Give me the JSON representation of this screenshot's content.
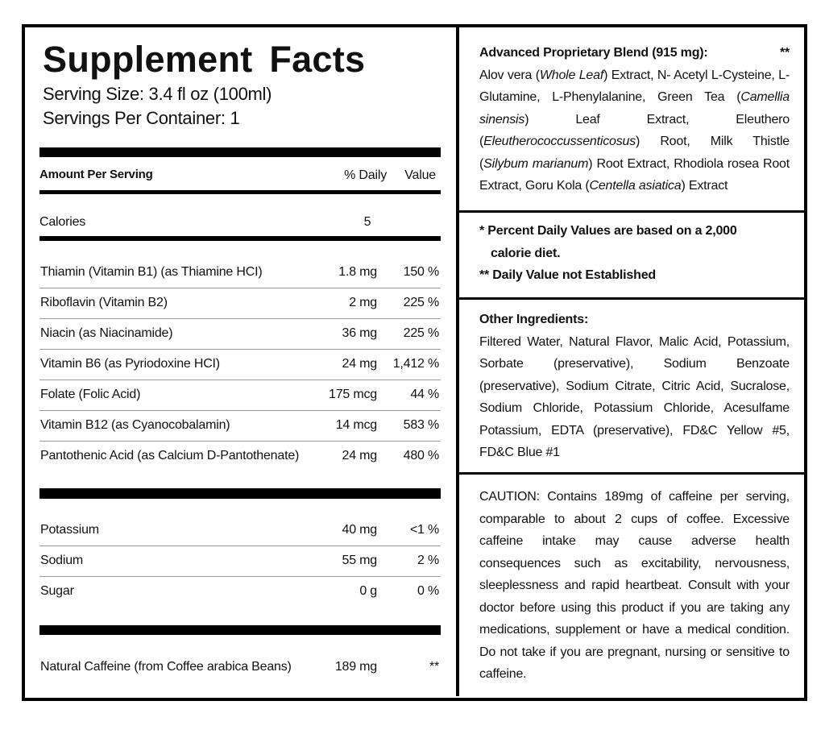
{
  "header": {
    "title": "Supplement Facts",
    "serving_size": "Serving Size: 3.4 fl oz (100ml)",
    "servings_per_container": "Servings Per Container: 1"
  },
  "table": {
    "columns": [
      "Amount Per Serving",
      "% Daily",
      "Value"
    ],
    "calories": [
      "Calories",
      "5"
    ],
    "vitamins": [
      [
        "Thiamin (Vitamin B1) (as Thiamine HCI)",
        "1.8 mg",
        "150 %"
      ],
      [
        "Riboflavin (Vitamin B2)",
        "2 mg",
        "225 %"
      ],
      [
        "Niacin (as Niacinamide)",
        "36 mg",
        "225 %"
      ],
      [
        "Vitamin B6 (as Pyriodoxine HCI)",
        "24 mg",
        "1,412 %"
      ],
      [
        "Folate (Folic Acid)",
        "175 mcg",
        "44 %"
      ],
      [
        "Vitamin B12 (as Cyanocobalamin)",
        "14 mcg",
        "583 %"
      ],
      [
        "Pantothenic Acid (as Calcium D-Pantothenate)",
        "24 mg",
        "480 %"
      ]
    ],
    "minerals": [
      [
        "Potassium",
        "40 mg",
        "<1 %"
      ],
      [
        "Sodium",
        "55 mg",
        "2 %"
      ],
      [
        "Sugar",
        "0 g",
        "0 %"
      ]
    ],
    "caffeine": [
      "Natural Caffeine (from Coffee arabica Beans)",
      "189 mg",
      "**"
    ]
  },
  "blend": {
    "title": "Advanced Proprietary Blend (915 mg):",
    "marker": "**",
    "segments": [
      "Alov vera (",
      "Whole Leaf",
      ") Extract, N- Acetyl L-Cysteine, L-Glutamine, L-Phenylalanine, Green Tea (",
      "Camellia sinensis",
      ") Leaf Extract, Eleuthero (",
      "Eleutherococcussenticosus",
      ") Root, Milk Thistle (",
      "Silybum marianum",
      ") Root Extract, Rhodiola rosea Root Extract, Goru Kola (",
      "Centella asiatica",
      ") Extract"
    ]
  },
  "notes": [
    "* Percent Daily Values are based on a 2,000 calorie diet.",
    "** Daily Value not Established"
  ],
  "other_ingredients": {
    "title": "Other Ingredients:",
    "text": "Filtered Water, Natural Flavor, Malic Acid, Potassium, Sorbate (preservative), Sodium Benzoate (preservative), Sodium Citrate, Citric Acid, Sucralose, Sodium Chloride, Potassium Chloride, Acesulfame Potassium, EDTA (preservative), FD&C Yellow #5, FD&C Blue #1"
  },
  "caution": "CAUTION: Contains 189mg of caffeine per serving, comparable to about 2 cups of coffee. Excessive caffeine intake may cause adverse health consequences such as excitability, nervousness, sleeplessness and rapid heartbeat. Consult with your doctor before using this product if you are taking any medications, supplement or have a medical condition. Do not take if you are pregnant, nursing or sensitive to caffeine."
}
